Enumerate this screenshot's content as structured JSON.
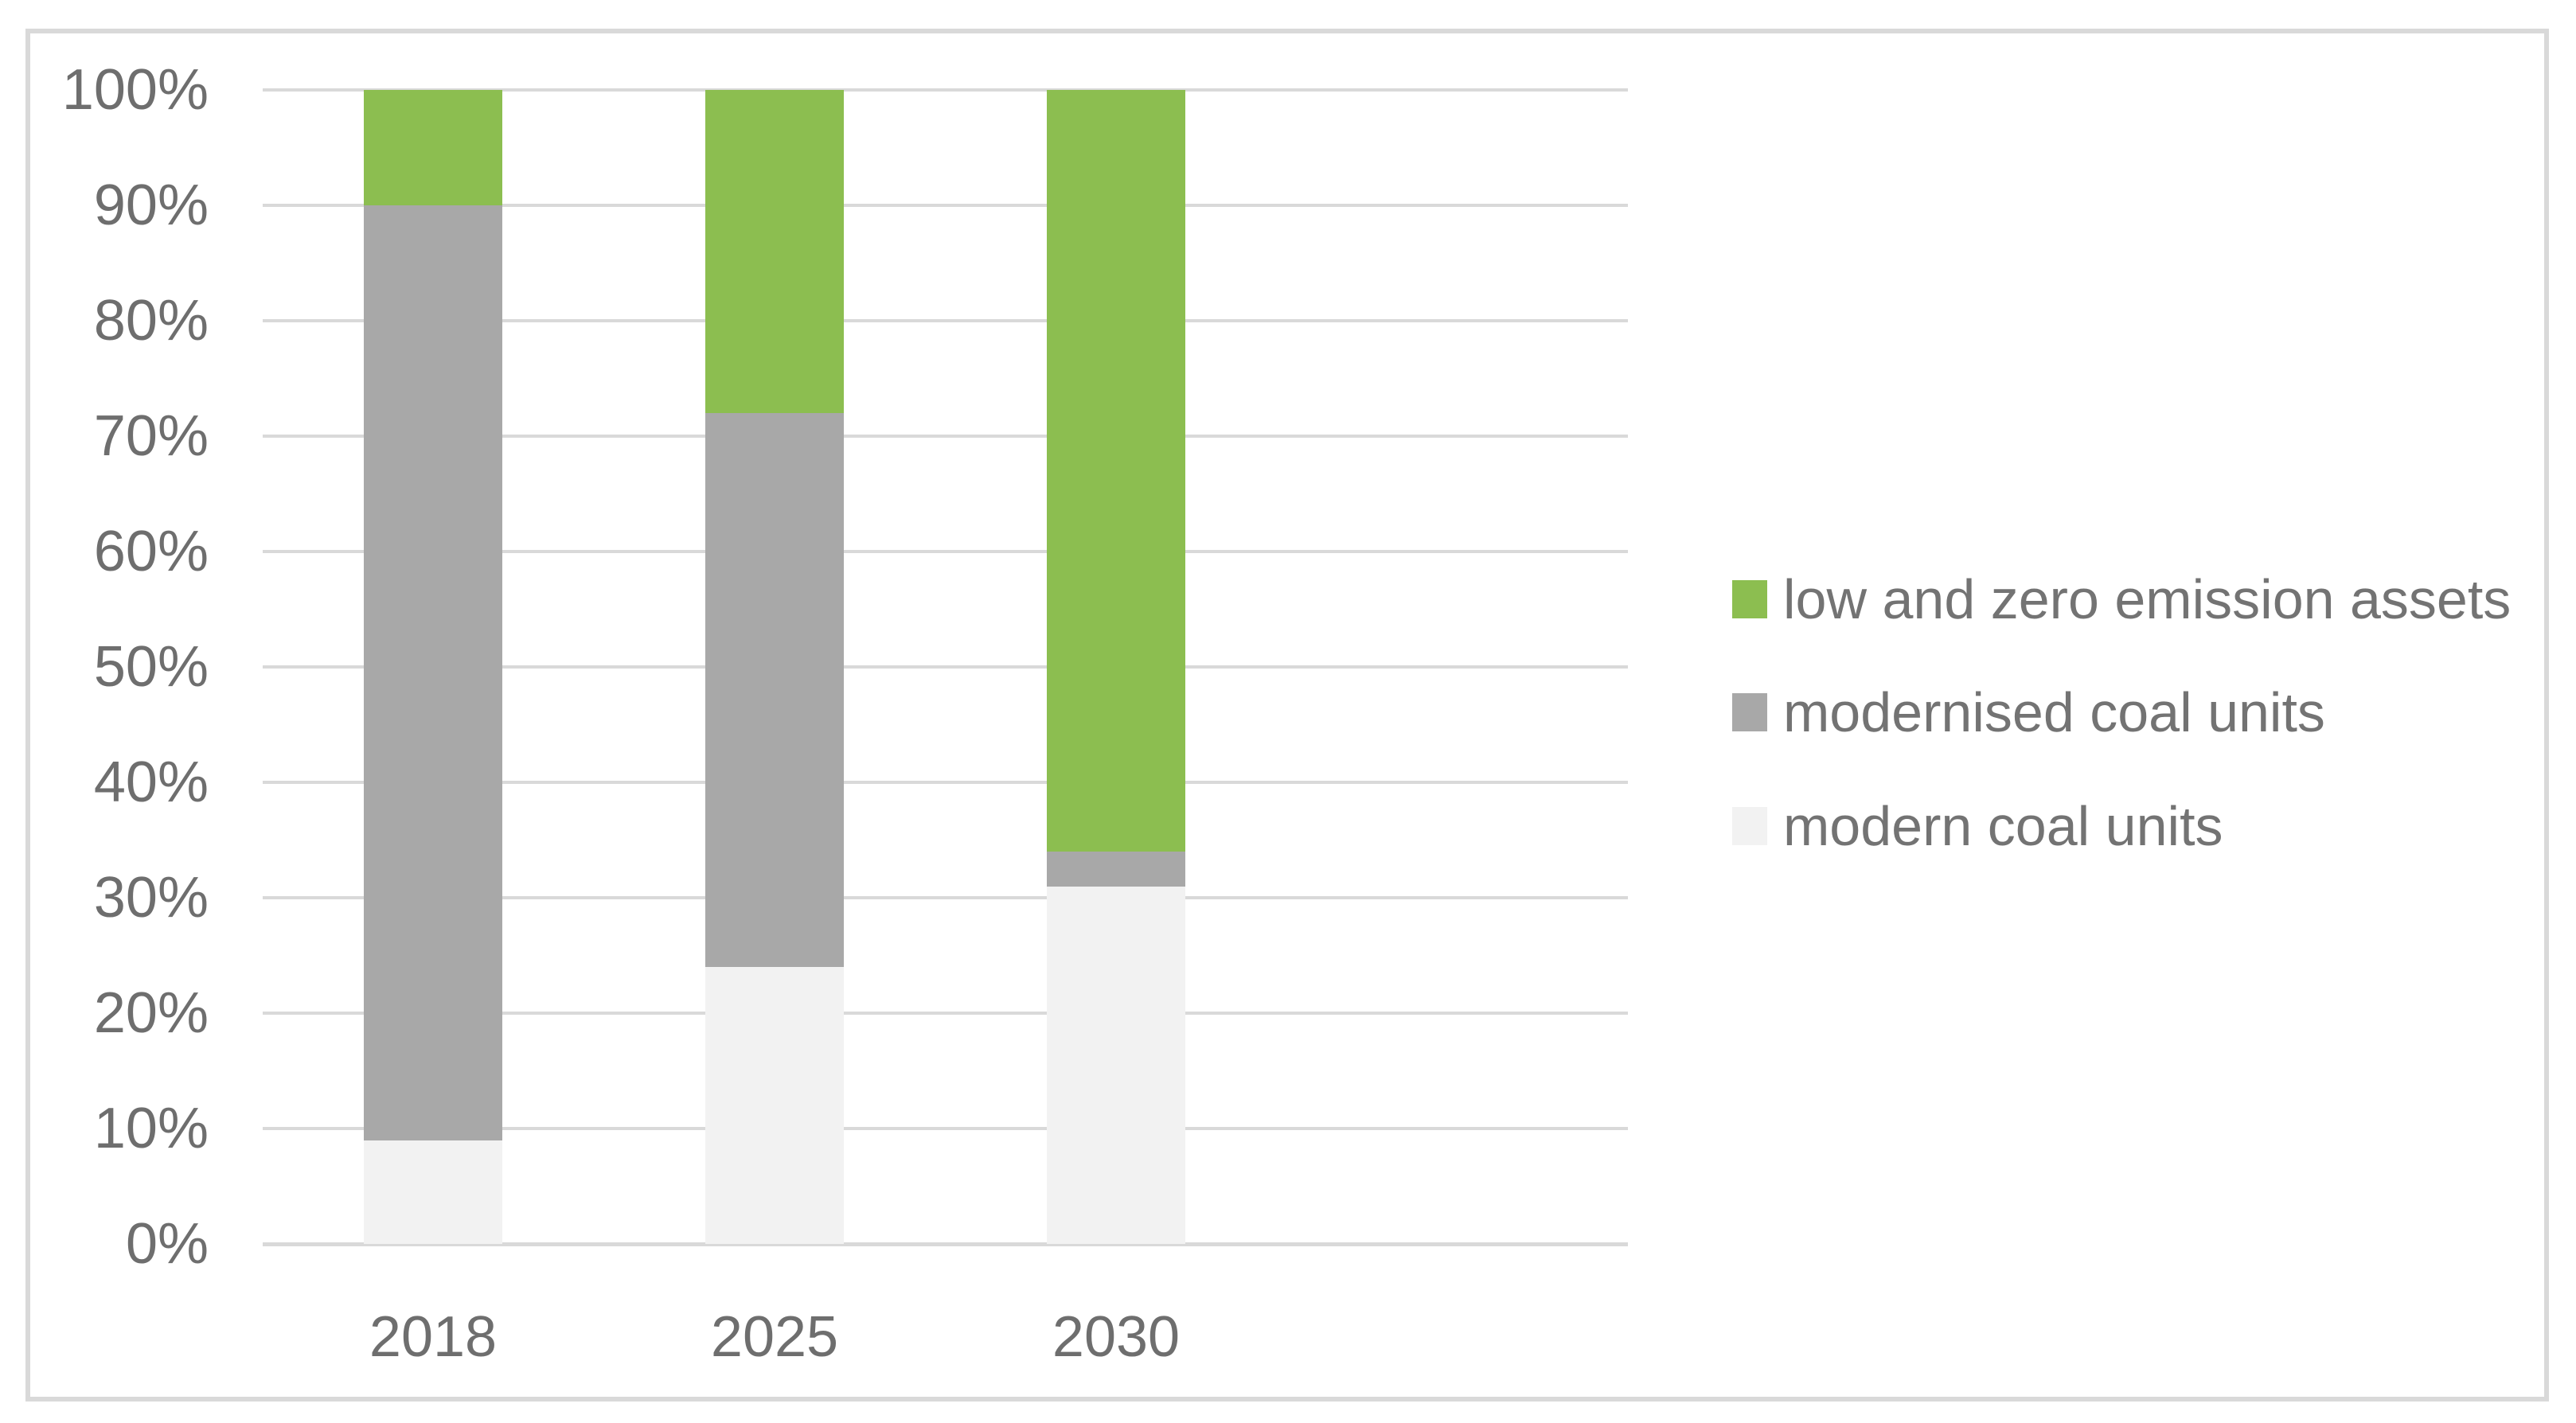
{
  "chart_data": {
    "type": "bar",
    "subtype": "stacked-100-percent",
    "title": "",
    "xlabel": "",
    "ylabel": "",
    "categories": [
      "2018",
      "2025",
      "2030"
    ],
    "series": [
      {
        "name": "modern coal units",
        "color": "#F2F2F2",
        "values": [
          9,
          24,
          31
        ]
      },
      {
        "name": "modernised coal units",
        "color": "#A8A8A8",
        "values": [
          81,
          48,
          3
        ]
      },
      {
        "name": "low and zero emission assets",
        "color": "#8CBE50",
        "values": [
          10,
          28,
          66
        ]
      }
    ],
    "y_ticks": [
      "0%",
      "10%",
      "20%",
      "30%",
      "40%",
      "50%",
      "60%",
      "70%",
      "80%",
      "90%",
      "100%"
    ],
    "ylim": [
      0,
      100
    ],
    "grid": true,
    "legend_position": "right",
    "legend_order": [
      "low and zero emission assets",
      "modernised coal units",
      "modern coal units"
    ]
  },
  "style": {
    "gridline_color": "#D9D9D9",
    "border_color": "#D9D9D9",
    "tick_text_color": "#6E6E6E",
    "legend_text_color": "#737373",
    "background_color": "#FFFFFF"
  }
}
